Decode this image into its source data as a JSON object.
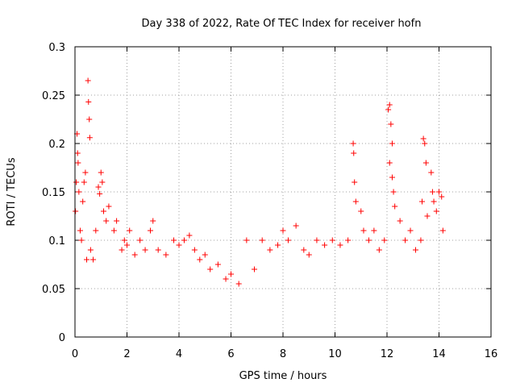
{
  "chart_data": {
    "type": "scatter",
    "title": "Day 338 of 2022, Rate Of TEC Index for receiver hofn",
    "xlabel": "GPS time / hours",
    "ylabel": "ROTI / TECUs",
    "xlim": [
      0,
      16
    ],
    "ylim": [
      0,
      0.3
    ],
    "x_ticks": [
      "0",
      "2",
      "4",
      "6",
      "8",
      "10",
      "12",
      "14",
      "16"
    ],
    "y_ticks": [
      "0",
      "0.05",
      "0.1",
      "0.15",
      "0.2",
      "0.25",
      "0.3"
    ],
    "grid": true,
    "marker": "+",
    "color": "#ff0000",
    "series": [
      {
        "values": [
          [
            0.02,
            0.13
          ],
          [
            0.05,
            0.16
          ],
          [
            0.08,
            0.21
          ],
          [
            0.1,
            0.19
          ],
          [
            0.12,
            0.18
          ],
          [
            0.15,
            0.15
          ],
          [
            0.2,
            0.11
          ],
          [
            0.25,
            0.1
          ],
          [
            0.3,
            0.14
          ],
          [
            0.35,
            0.16
          ],
          [
            0.4,
            0.17
          ],
          [
            0.45,
            0.08
          ],
          [
            0.5,
            0.265
          ],
          [
            0.52,
            0.243
          ],
          [
            0.55,
            0.225
          ],
          [
            0.57,
            0.206
          ],
          [
            0.6,
            0.09
          ],
          [
            0.7,
            0.08
          ],
          [
            0.8,
            0.11
          ],
          [
            0.9,
            0.155
          ],
          [
            0.95,
            0.148
          ],
          [
            1.0,
            0.17
          ],
          [
            1.05,
            0.16
          ],
          [
            1.1,
            0.13
          ],
          [
            1.2,
            0.12
          ],
          [
            1.3,
            0.135
          ],
          [
            1.5,
            0.11
          ],
          [
            1.6,
            0.12
          ],
          [
            1.8,
            0.09
          ],
          [
            1.9,
            0.1
          ],
          [
            2.0,
            0.095
          ],
          [
            2.1,
            0.11
          ],
          [
            2.3,
            0.085
          ],
          [
            2.5,
            0.1
          ],
          [
            2.7,
            0.09
          ],
          [
            2.9,
            0.11
          ],
          [
            3.0,
            0.12
          ],
          [
            3.2,
            0.09
          ],
          [
            3.5,
            0.085
          ],
          [
            3.8,
            0.1
          ],
          [
            4.0,
            0.095
          ],
          [
            4.2,
            0.1
          ],
          [
            4.4,
            0.105
          ],
          [
            4.6,
            0.09
          ],
          [
            4.8,
            0.08
          ],
          [
            5.0,
            0.085
          ],
          [
            5.2,
            0.07
          ],
          [
            5.5,
            0.075
          ],
          [
            5.8,
            0.06
          ],
          [
            6.0,
            0.065
          ],
          [
            6.3,
            0.055
          ],
          [
            6.6,
            0.1
          ],
          [
            6.9,
            0.07
          ],
          [
            7.2,
            0.1
          ],
          [
            7.5,
            0.09
          ],
          [
            7.8,
            0.095
          ],
          [
            8.0,
            0.11
          ],
          [
            8.2,
            0.1
          ],
          [
            8.5,
            0.115
          ],
          [
            8.8,
            0.09
          ],
          [
            9.0,
            0.085
          ],
          [
            9.3,
            0.1
          ],
          [
            9.6,
            0.095
          ],
          [
            9.9,
            0.1
          ],
          [
            10.2,
            0.095
          ],
          [
            10.5,
            0.1
          ],
          [
            10.7,
            0.2
          ],
          [
            10.72,
            0.19
          ],
          [
            10.75,
            0.16
          ],
          [
            10.8,
            0.14
          ],
          [
            11.0,
            0.13
          ],
          [
            11.1,
            0.11
          ],
          [
            11.3,
            0.1
          ],
          [
            11.5,
            0.11
          ],
          [
            11.7,
            0.09
          ],
          [
            11.9,
            0.1
          ],
          [
            12.05,
            0.235
          ],
          [
            12.1,
            0.24
          ],
          [
            12.15,
            0.22
          ],
          [
            12.2,
            0.2
          ],
          [
            12.1,
            0.18
          ],
          [
            12.2,
            0.165
          ],
          [
            12.25,
            0.15
          ],
          [
            12.3,
            0.135
          ],
          [
            12.5,
            0.12
          ],
          [
            12.7,
            0.1
          ],
          [
            12.9,
            0.11
          ],
          [
            13.1,
            0.09
          ],
          [
            13.3,
            0.1
          ],
          [
            13.4,
            0.205
          ],
          [
            13.45,
            0.2
          ],
          [
            13.5,
            0.18
          ],
          [
            13.35,
            0.14
          ],
          [
            13.55,
            0.125
          ],
          [
            13.7,
            0.17
          ],
          [
            13.75,
            0.15
          ],
          [
            13.8,
            0.14
          ],
          [
            13.9,
            0.13
          ],
          [
            14.0,
            0.15
          ],
          [
            14.1,
            0.145
          ],
          [
            14.15,
            0.11
          ]
        ]
      }
    ]
  }
}
